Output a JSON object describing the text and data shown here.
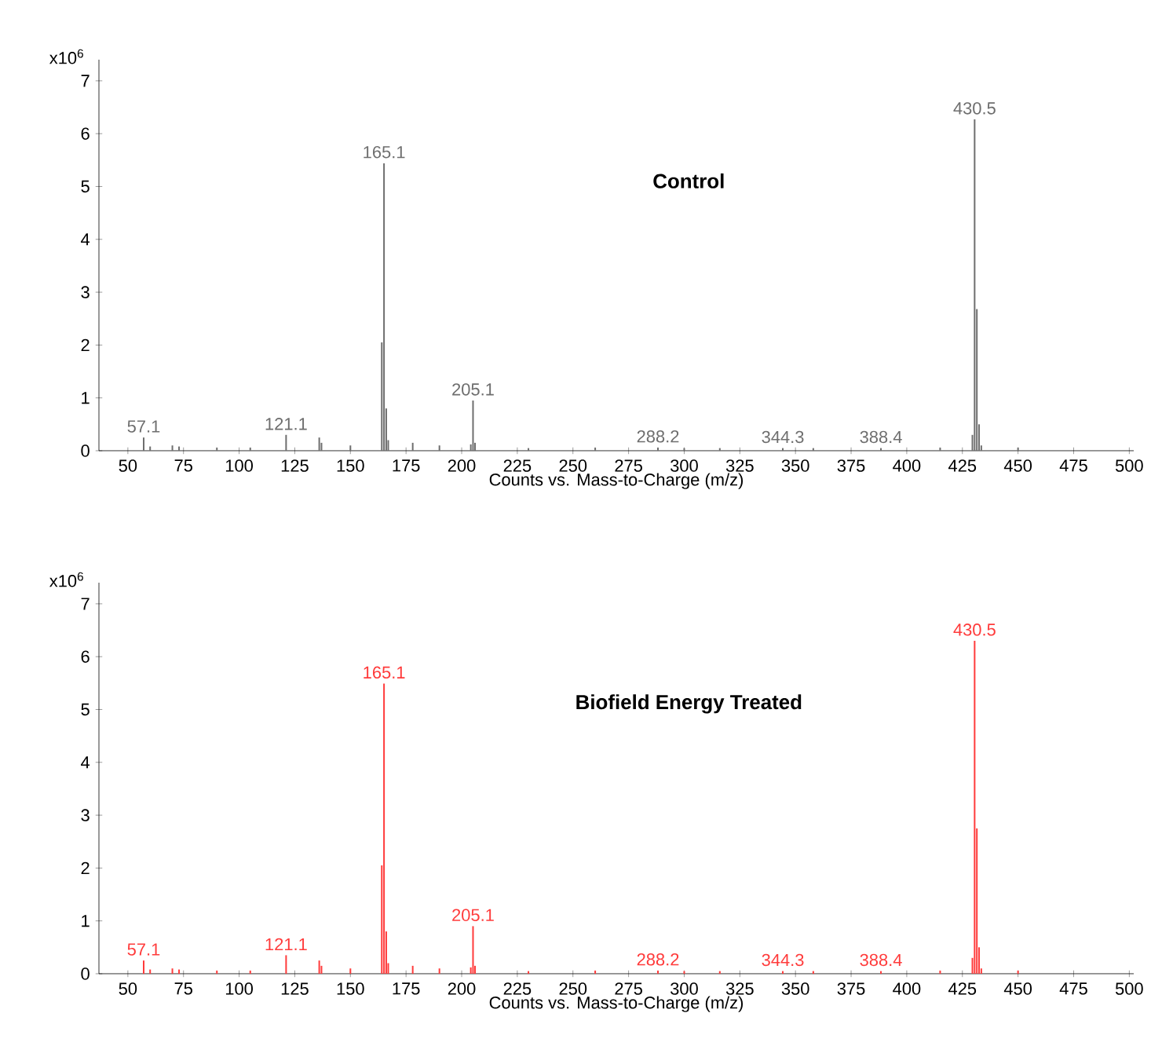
{
  "chart_data": [
    {
      "type": "bar",
      "title": "Control",
      "xlabel": "Counts vs. Mass-to-Charge (m/z)",
      "color": "#6e6e6e",
      "x": [
        57.1,
        60,
        70,
        73,
        90,
        105,
        121.1,
        136,
        137,
        150,
        164.1,
        165.1,
        166.1,
        167,
        178,
        190,
        204.1,
        205.1,
        206,
        230,
        260,
        288.2,
        300,
        316,
        344.3,
        358,
        388.4,
        415,
        429.5,
        430.5,
        431.5,
        432.5,
        433.5,
        450
      ],
      "values": [
        0.25,
        0.08,
        0.1,
        0.08,
        0.06,
        0.06,
        0.3,
        0.25,
        0.15,
        0.1,
        2.05,
        5.44,
        0.8,
        0.2,
        0.15,
        0.1,
        0.12,
        0.95,
        0.15,
        0.05,
        0.06,
        0.06,
        0.05,
        0.05,
        0.05,
        0.05,
        0.05,
        0.06,
        0.3,
        6.27,
        2.68,
        0.5,
        0.1,
        0.06
      ],
      "xlim": [
        37,
        502
      ],
      "xticks": [
        50,
        75,
        100,
        125,
        150,
        175,
        200,
        225,
        250,
        275,
        300,
        325,
        350,
        375,
        400,
        425,
        450,
        475,
        500
      ],
      "ylim": [
        0,
        7.4
      ],
      "yticks": [
        0,
        1,
        2,
        3,
        4,
        5,
        6,
        7
      ],
      "annotations": [
        "x10$^{6}$",
        {
          "text": "57.1",
          "x": 57.1,
          "y": 0.25
        },
        {
          "text": "121.1",
          "x": 121.1,
          "y": 0.3
        },
        {
          "text": "165.1",
          "x": 165.1,
          "y": 5.44
        },
        {
          "text": "205.1",
          "x": 205.1,
          "y": 0.95
        },
        {
          "text": "288.2",
          "x": 288.2,
          "y": 0.06
        },
        {
          "text": "344.3",
          "x": 344.3,
          "y": 0.05
        },
        {
          "text": "388.4",
          "x": 388.4,
          "y": 0.05
        },
        {
          "text": "430.5",
          "x": 430.5,
          "y": 6.27
        }
      ]
    },
    {
      "type": "bar",
      "title": "Biofield Energy Treated",
      "xlabel": "Counts vs. Mass-to-Charge (m/z)",
      "color": "#ff3b3b",
      "x": [
        57.1,
        60,
        70,
        73,
        90,
        105,
        121.1,
        136,
        137,
        150,
        164.1,
        165.1,
        166.1,
        167,
        178,
        190,
        204.1,
        205.1,
        206,
        230,
        260,
        288.2,
        300,
        316,
        344.3,
        358,
        388.4,
        415,
        429.5,
        430.5,
        431.5,
        432.5,
        433.5,
        450
      ],
      "values": [
        0.25,
        0.08,
        0.1,
        0.08,
        0.06,
        0.06,
        0.35,
        0.25,
        0.15,
        0.1,
        2.05,
        5.49,
        0.8,
        0.2,
        0.15,
        0.1,
        0.12,
        0.9,
        0.15,
        0.05,
        0.06,
        0.06,
        0.05,
        0.05,
        0.05,
        0.05,
        0.05,
        0.06,
        0.3,
        6.3,
        2.75,
        0.5,
        0.1,
        0.06
      ],
      "xlim": [
        37,
        502
      ],
      "xticks": [
        50,
        75,
        100,
        125,
        150,
        175,
        200,
        225,
        250,
        275,
        300,
        325,
        350,
        375,
        400,
        425,
        450,
        475,
        500
      ],
      "ylim": [
        0,
        7.4
      ],
      "yticks": [
        0,
        1,
        2,
        3,
        4,
        5,
        6,
        7
      ],
      "annotations": [
        "x10$^{6}$",
        {
          "text": "57.1",
          "x": 57.1,
          "y": 0.25
        },
        {
          "text": "121.1",
          "x": 121.1,
          "y": 0.35
        },
        {
          "text": "165.1",
          "x": 165.1,
          "y": 5.49
        },
        {
          "text": "205.1",
          "x": 205.1,
          "y": 0.9
        },
        {
          "text": "288.2",
          "x": 288.2,
          "y": 0.06
        },
        {
          "text": "344.3",
          "x": 344.3,
          "y": 0.05
        },
        {
          "text": "388.4",
          "x": 388.4,
          "y": 0.05
        },
        {
          "text": "430.5",
          "x": 430.5,
          "y": 6.3
        }
      ]
    }
  ]
}
